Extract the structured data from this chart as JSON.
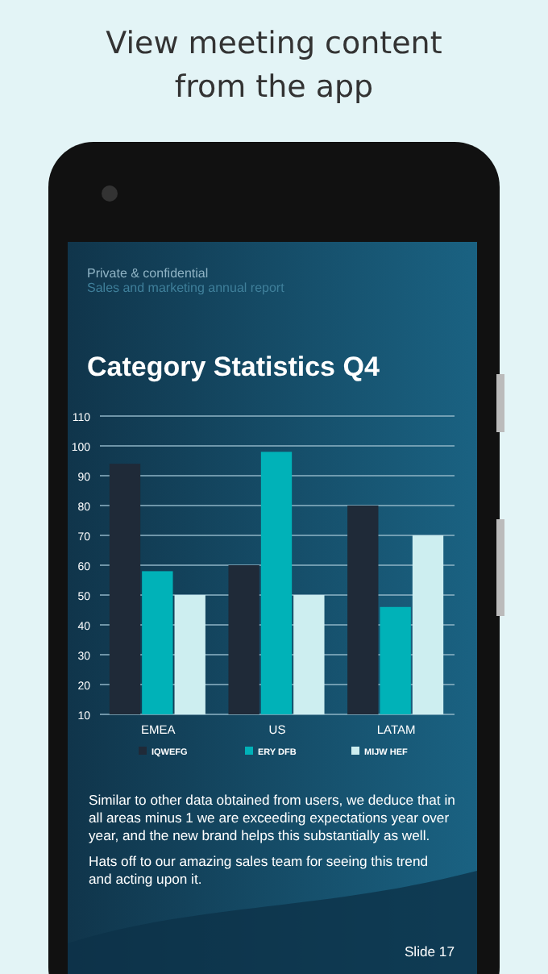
{
  "chart_data": {
    "type": "bar",
    "title": "Category Statistics Q4",
    "categories": [
      "EMEA",
      "US",
      "LATAM"
    ],
    "series": [
      {
        "name": "IQWEFG",
        "color": "#1f2a38",
        "values": [
          94,
          60,
          80
        ]
      },
      {
        "name": "ERY DFB",
        "color": "#00b2b8",
        "values": [
          58,
          98,
          46
        ]
      },
      {
        "name": "MIJW HEF",
        "color": "#cdeef0",
        "values": [
          50,
          50,
          70
        ]
      }
    ],
    "ylim": [
      10,
      110
    ],
    "yticks": [
      10,
      20,
      30,
      40,
      50,
      60,
      70,
      80,
      90,
      100,
      110
    ],
    "grid": "y",
    "legend": "bottom",
    "annotations": [
      "View meeting content from the app",
      "Private & confidential",
      "Sales and marketing annual report",
      "Similar to other data obtained from users, we deduce that in all areas minus 1 we are exceeding expectations year over year, and the new brand helps this substantially as well.",
      "Hats off to our amazing sales team for seeing this trend and acting upon it.",
      "Slide 17"
    ]
  }
}
